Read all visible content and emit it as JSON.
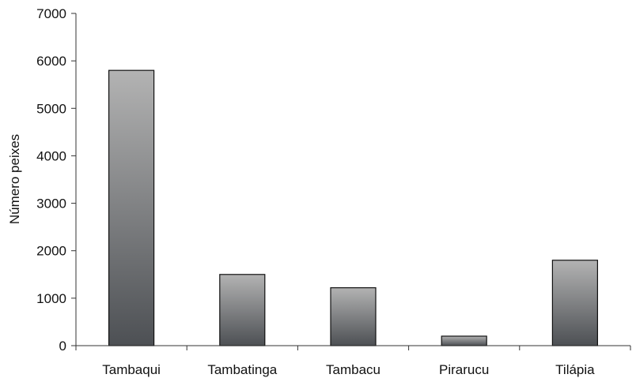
{
  "chart_data": {
    "type": "bar",
    "ylabel": "Número peixes",
    "categories": [
      "Tambaqui",
      "Tambatinga",
      "Tambacu",
      "Pirarucu",
      "Tilápia"
    ],
    "values": [
      5800,
      1500,
      1220,
      200,
      1800
    ],
    "ylim": [
      0,
      7000
    ],
    "yticks": [
      0,
      1000,
      2000,
      3000,
      4000,
      5000,
      6000,
      7000
    ],
    "grid": false,
    "legend": "none",
    "colors": {
      "bar_top": "#b3b3b3",
      "bar_bottom": "#4d5054",
      "bar_outline": "#111111",
      "axis": "#333333",
      "text": "#111111"
    }
  }
}
